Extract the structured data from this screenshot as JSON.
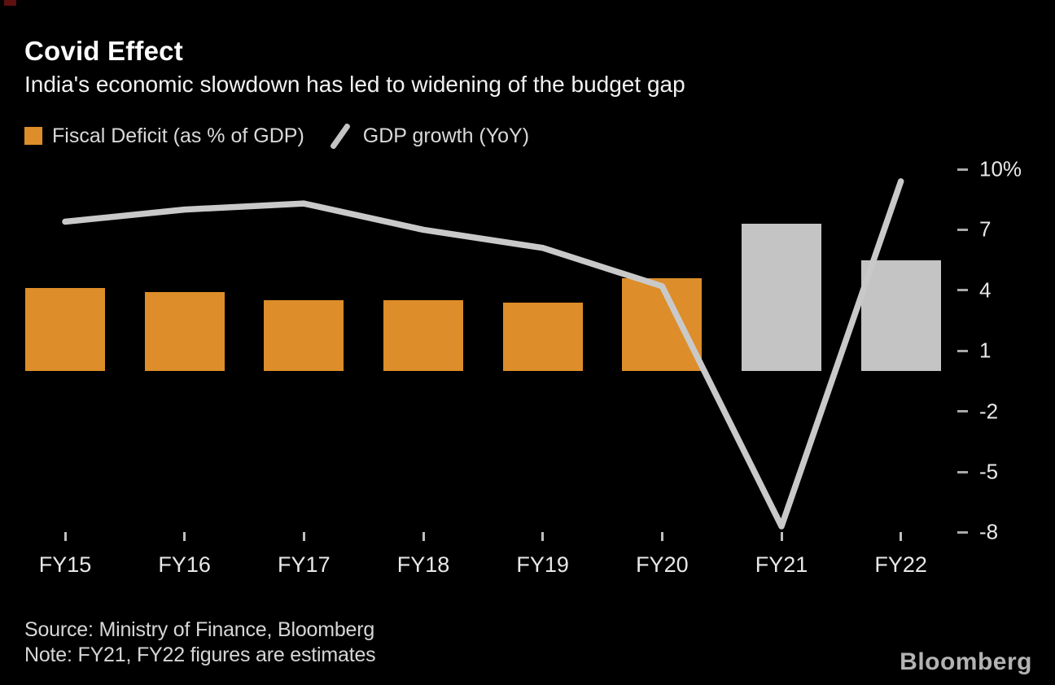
{
  "header": {
    "title": "Covid Effect",
    "subtitle": "India's economic slowdown has led to widening of the budget gap"
  },
  "legend": {
    "items": [
      {
        "label": "Fiscal Deficit (as % of GDP)",
        "swatch": "square",
        "color": "#dd8d29"
      },
      {
        "label": "GDP growth (YoY)",
        "swatch": "slash",
        "color": "#c4c4c4"
      }
    ]
  },
  "chart_data": {
    "type": "bar+line combo",
    "categories": [
      "FY15",
      "FY16",
      "FY17",
      "FY18",
      "FY19",
      "FY20",
      "FY21",
      "FY22"
    ],
    "series": [
      {
        "name": "Fiscal Deficit (as % of GDP)",
        "type": "bar",
        "values": [
          4.1,
          3.9,
          3.5,
          3.5,
          3.4,
          4.6,
          7.3,
          5.5
        ],
        "bar_colors": [
          "#dd8d29",
          "#dd8d29",
          "#dd8d29",
          "#dd8d29",
          "#dd8d29",
          "#dd8d29",
          "#c4c4c4",
          "#c4c4c4"
        ]
      },
      {
        "name": "GDP growth (YoY)",
        "type": "line",
        "values": [
          7.4,
          8.0,
          8.3,
          7.0,
          6.1,
          4.2,
          -7.7,
          9.4
        ],
        "color": "#c9c9c9"
      }
    ],
    "y_axis": {
      "side": "right",
      "ticks": [
        10,
        7,
        4,
        1,
        -2,
        -5,
        -8
      ],
      "tick_labels": [
        "10%",
        "7",
        "4",
        "1",
        "-2",
        "-5",
        "-8"
      ],
      "range": [
        -8,
        10
      ],
      "grid": false
    },
    "estimate_categories": [
      "FY21",
      "FY22"
    ],
    "legend_position": "top-left"
  },
  "footer": {
    "source": "Source: Ministry of Finance, Bloomberg",
    "note": "Note: FY21, FY22 figures are estimates",
    "brand": "Bloomberg"
  },
  "colors": {
    "background": "#000000",
    "bar_orange": "#dd8d29",
    "bar_estimate_gray": "#c4c4c4",
    "line_gray": "#c9c9c9",
    "corner_mark_red": "#5e0f10"
  }
}
